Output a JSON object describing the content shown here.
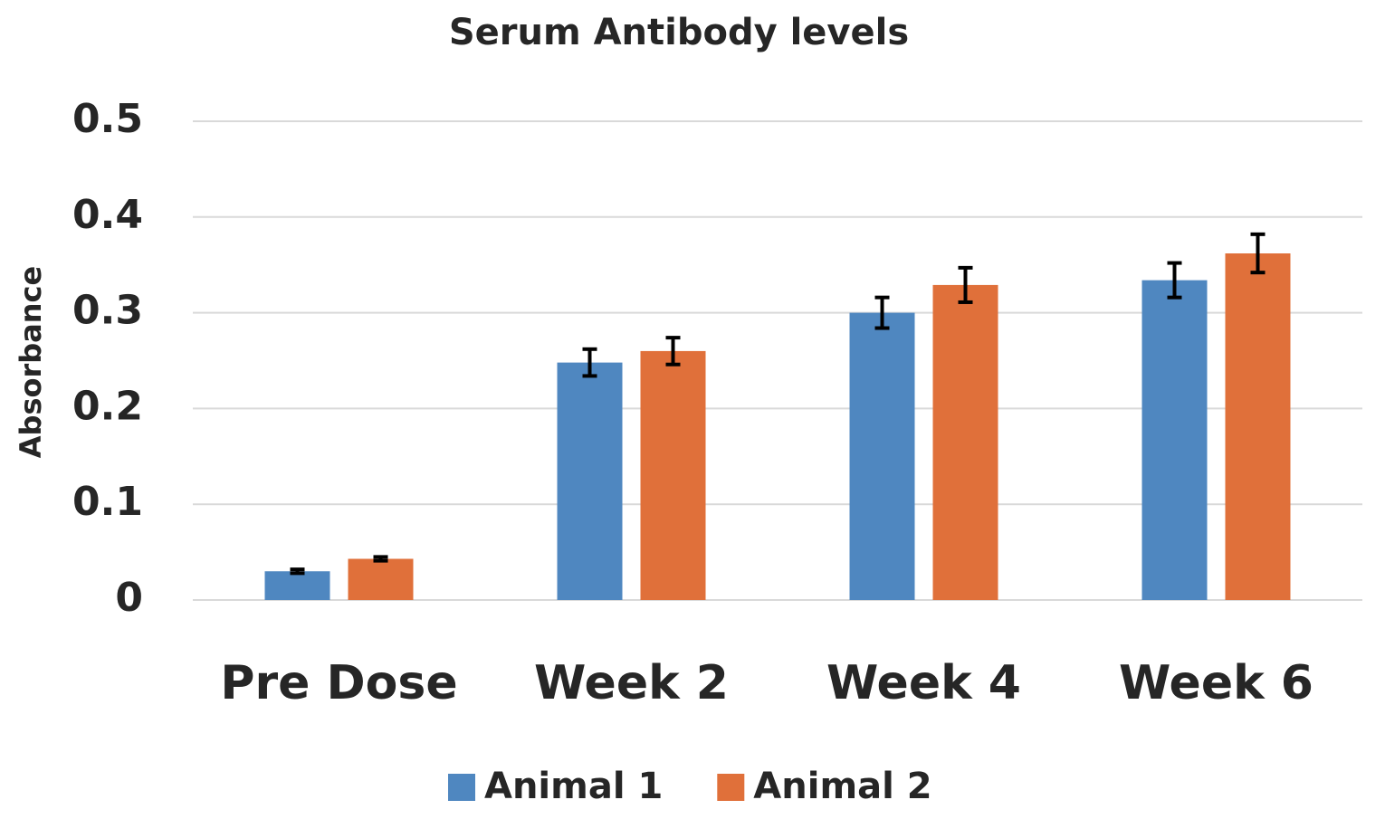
{
  "chart_data": {
    "type": "bar",
    "title": "Serum Antibody levels",
    "y_label": "Absorbance",
    "categories": [
      "Pre Dose",
      "Week 2",
      "Week 4",
      "Week 6"
    ],
    "series": [
      {
        "name": "Animal 1",
        "color": "#4f87c0",
        "values": [
          0.03,
          0.248,
          0.3,
          0.334
        ],
        "errors": [
          0.002,
          0.014,
          0.016,
          0.018
        ]
      },
      {
        "name": "Animal 2",
        "color": "#e0703a",
        "values": [
          0.043,
          0.26,
          0.329,
          0.362
        ],
        "errors": [
          0.002,
          0.014,
          0.018,
          0.02
        ]
      }
    ],
    "ylim": [
      0,
      0.5
    ],
    "yticks": [
      0,
      0.1,
      0.2,
      0.3,
      0.4,
      0.5
    ],
    "grid": true,
    "legend": "bottom"
  }
}
